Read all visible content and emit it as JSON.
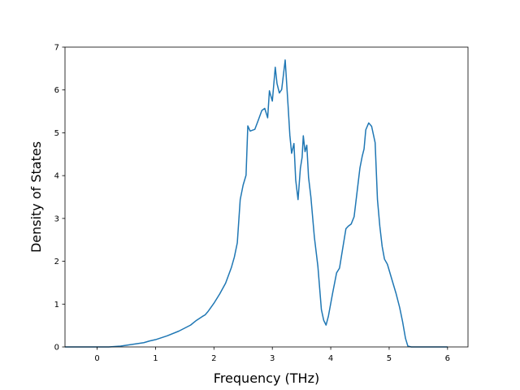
{
  "chart_data": {
    "type": "line",
    "title": "",
    "xlabel": "Frequency (THz)",
    "ylabel": "Density of States",
    "xlim": [
      -0.55,
      6.35
    ],
    "ylim": [
      0,
      7
    ],
    "xticks": [
      0,
      1,
      2,
      3,
      4,
      5,
      6
    ],
    "yticks": [
      0,
      1,
      2,
      3,
      4,
      5,
      6,
      7
    ],
    "grid": false,
    "line_color": "#1f77b4",
    "series": [
      {
        "x": [
          -0.55,
          -0.4,
          -0.2,
          0.0,
          0.2,
          0.4,
          0.6,
          0.8,
          0.9,
          1.0,
          1.2,
          1.4,
          1.6,
          1.7,
          1.8,
          1.85,
          1.9,
          2.0,
          2.1,
          2.2,
          2.3,
          2.35,
          2.4,
          2.45,
          2.5,
          2.55,
          2.58,
          2.62,
          2.7,
          2.75,
          2.82,
          2.87,
          2.92,
          2.95,
          3.0,
          3.05,
          3.08,
          3.12,
          3.16,
          3.22,
          3.27,
          3.3,
          3.33,
          3.37,
          3.4,
          3.44,
          3.48,
          3.51,
          3.53,
          3.56,
          3.59,
          3.62,
          3.66,
          3.72,
          3.78,
          3.84,
          3.88,
          3.92,
          3.96,
          4.03,
          4.07,
          4.1,
          4.15,
          4.2,
          4.26,
          4.3,
          4.35,
          4.4,
          4.5,
          4.54,
          4.57,
          4.6,
          4.65,
          4.7,
          4.76,
          4.8,
          4.84,
          4.88,
          4.92,
          4.97,
          5.05,
          5.12,
          5.18,
          5.23,
          5.28,
          5.32,
          5.38,
          5.42,
          5.46,
          5.5,
          5.6,
          6.0
        ],
        "y": [
          0.0,
          0.0,
          0.0,
          0.0,
          0.0,
          0.02,
          0.06,
          0.1,
          0.14,
          0.17,
          0.26,
          0.37,
          0.51,
          0.62,
          0.71,
          0.75,
          0.83,
          1.02,
          1.24,
          1.49,
          1.86,
          2.1,
          2.43,
          3.44,
          3.78,
          4.01,
          5.16,
          5.04,
          5.08,
          5.26,
          5.52,
          5.57,
          5.35,
          5.98,
          5.74,
          6.53,
          6.15,
          5.93,
          6.01,
          6.7,
          5.62,
          4.94,
          4.52,
          4.75,
          3.9,
          3.44,
          4.17,
          4.43,
          4.93,
          4.56,
          4.71,
          3.96,
          3.5,
          2.56,
          1.88,
          0.87,
          0.62,
          0.51,
          0.72,
          1.24,
          1.52,
          1.73,
          1.84,
          2.26,
          2.76,
          2.82,
          2.87,
          3.04,
          4.18,
          4.46,
          4.62,
          5.07,
          5.23,
          5.15,
          4.77,
          3.44,
          2.82,
          2.35,
          2.05,
          1.93,
          1.56,
          1.24,
          0.92,
          0.59,
          0.2,
          0.02,
          0.0,
          0.0,
          0.0,
          0.0,
          0.0,
          0.0
        ]
      }
    ]
  }
}
